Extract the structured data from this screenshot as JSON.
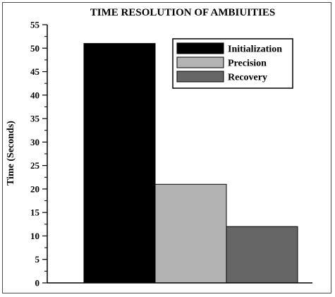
{
  "chart_data": {
    "type": "bar",
    "title": "TIME RESOLUTION OF AMBIUITIES",
    "xlabel": "",
    "ylabel": "Time (Seconds)",
    "ylim": [
      0,
      55
    ],
    "yticks": [
      0,
      5,
      10,
      15,
      20,
      25,
      30,
      35,
      40,
      45,
      50,
      55
    ],
    "grid": false,
    "legend_position": "top-right",
    "series": [
      {
        "name": "Initialization",
        "value": 51,
        "color": "#000000"
      },
      {
        "name": "Precision",
        "value": 21,
        "color": "#b3b3b3"
      },
      {
        "name": "Recovery",
        "value": 12,
        "color": "#666666"
      }
    ]
  }
}
